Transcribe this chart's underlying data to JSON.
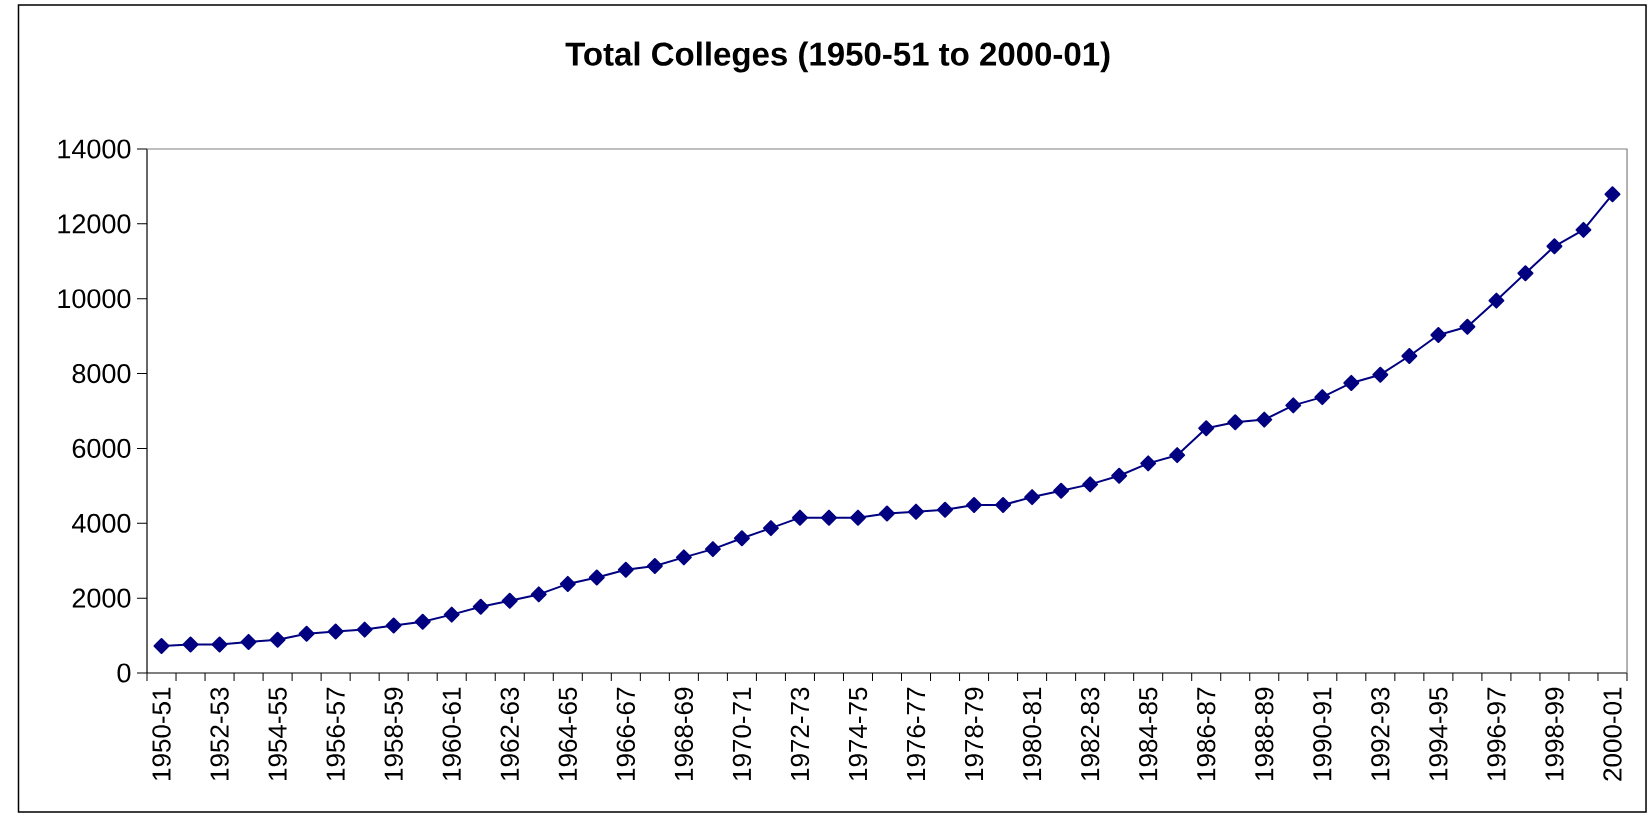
{
  "chart_data": {
    "type": "line",
    "title": "Total Colleges (1950-51 to 2000-01)",
    "categories": [
      "1950-51",
      null,
      "1952-53",
      null,
      "1954-55",
      null,
      "1956-57",
      null,
      "1958-59",
      null,
      "1960-61",
      null,
      "1962-63",
      null,
      "1964-65",
      null,
      "1966-67",
      null,
      "1968-69",
      null,
      "1970-71",
      null,
      "1972-73",
      null,
      "1974-75",
      null,
      "1976-77",
      null,
      "1978-79",
      null,
      "1980-81",
      null,
      "1982-83",
      null,
      "1984-85",
      null,
      "1986-87",
      null,
      "1988-89",
      null,
      "1990-91",
      null,
      "1992-93",
      null,
      "1994-95",
      null,
      "1996-97",
      null,
      "1998-99",
      null,
      "2000-01"
    ],
    "series": [
      {
        "color": "#000080",
        "values": [
          720,
          760,
          760,
          830,
          890,
          1050,
          1110,
          1160,
          1270,
          1370,
          1560,
          1770,
          1930,
          2100,
          2380,
          2550,
          2760,
          2860,
          3090,
          3310,
          3600,
          3870,
          4150,
          4150,
          4150,
          4260,
          4310,
          4360,
          4490,
          4490,
          4700,
          4870,
          5040,
          5270,
          5600,
          5820,
          6540,
          6700,
          6770,
          7150,
          7370,
          7750,
          7970,
          8470,
          9030,
          9250,
          9950,
          10680,
          11400,
          11840,
          12790
        ]
      }
    ],
    "ylim": [
      0,
      14000
    ],
    "yticks": [
      0,
      2000,
      4000,
      6000,
      8000,
      10000,
      12000,
      14000
    ],
    "marker": "diamond",
    "line_style": "solid"
  }
}
